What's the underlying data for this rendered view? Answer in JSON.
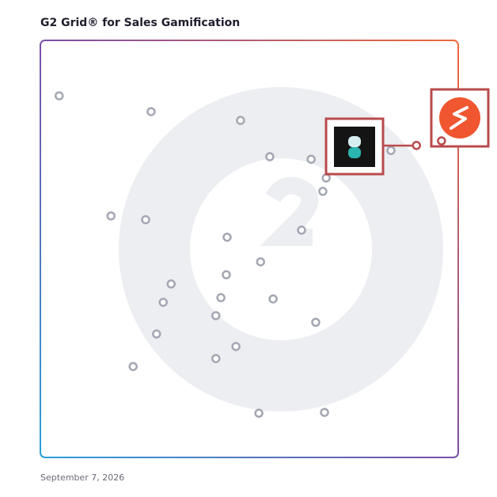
{
  "chart_data": {
    "type": "scatter",
    "title": "G2 Grid® for Sales Gamification",
    "date": "September 7, 2026",
    "xlim": [
      0,
      100
    ],
    "ylim": [
      0,
      100
    ],
    "series": [
      {
        "color": "#a4a7b3",
        "x": [
          4.5,
          26.5,
          47.9,
          54.9,
          64.8,
          68.4,
          67.6,
          83.9,
          16.9,
          25.2,
          44.7,
          62.5,
          52.7,
          44.5,
          31.3,
          29.4,
          43.2,
          55.7,
          42.0,
          65.9,
          27.8,
          46.8,
          42.0,
          22.2,
          52.3,
          68.0
        ],
        "y": [
          86.7,
          82.9,
          80.8,
          72.1,
          71.5,
          67.0,
          63.8,
          73.6,
          57.9,
          57.0,
          52.8,
          54.5,
          46.9,
          43.8,
          41.6,
          37.2,
          38.3,
          38.0,
          34.0,
          32.4,
          29.6,
          26.6,
          23.7,
          21.8,
          10.6,
          10.8
        ]
      },
      {
        "color": "#b94a4c",
        "x": [
          90.0,
          96.0
        ],
        "y": [
          74.8,
          75.9
        ]
      }
    ]
  }
}
